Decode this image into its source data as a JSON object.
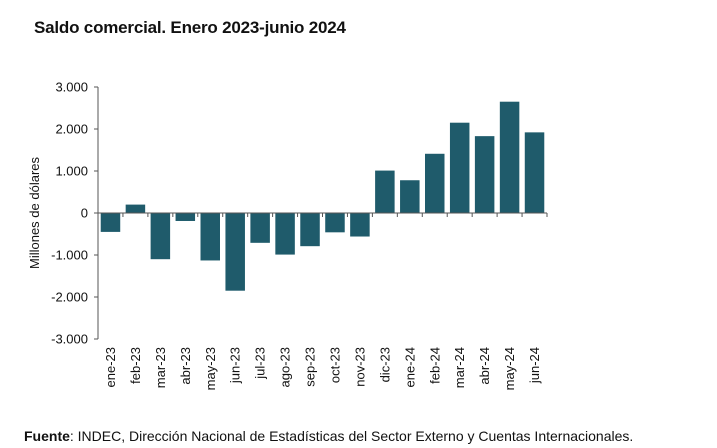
{
  "title": "Saldo comercial. Enero 2023-junio 2024",
  "source": {
    "label": "Fuente",
    "text": ": INDEC, Dirección Nacional de Estadísticas del Sector Externo y Cuentas Internacionales."
  },
  "colors": {
    "bar": "#1f5b6b",
    "axis": "#555555"
  },
  "chart_data": {
    "type": "bar",
    "title": "Saldo comercial. Enero 2023-junio 2024",
    "xlabel": "",
    "ylabel": "Millones de dólares",
    "ylim": [
      -3000,
      3000
    ],
    "ytick_values": [
      -3000,
      -2000,
      -1000,
      0,
      1000,
      2000,
      3000
    ],
    "ytick_labels": [
      "-3.000",
      "-2.000",
      "-1.000",
      "0",
      "1.000",
      "2.000",
      "3.000"
    ],
    "categories": [
      "ene-23",
      "feb-23",
      "mar-23",
      "abr-23",
      "may-23",
      "jun-23",
      "jul-23",
      "ago-23",
      "sep-23",
      "oct-23",
      "nov-23",
      "dic-23",
      "ene-24",
      "feb-24",
      "mar-24",
      "abr-24",
      "may-24",
      "jun-24"
    ],
    "values": [
      -450,
      200,
      -1100,
      -190,
      -1130,
      -1850,
      -710,
      -990,
      -790,
      -460,
      -560,
      1010,
      780,
      1410,
      2150,
      1830,
      2650,
      1920
    ],
    "grid": false,
    "legend": "none"
  }
}
